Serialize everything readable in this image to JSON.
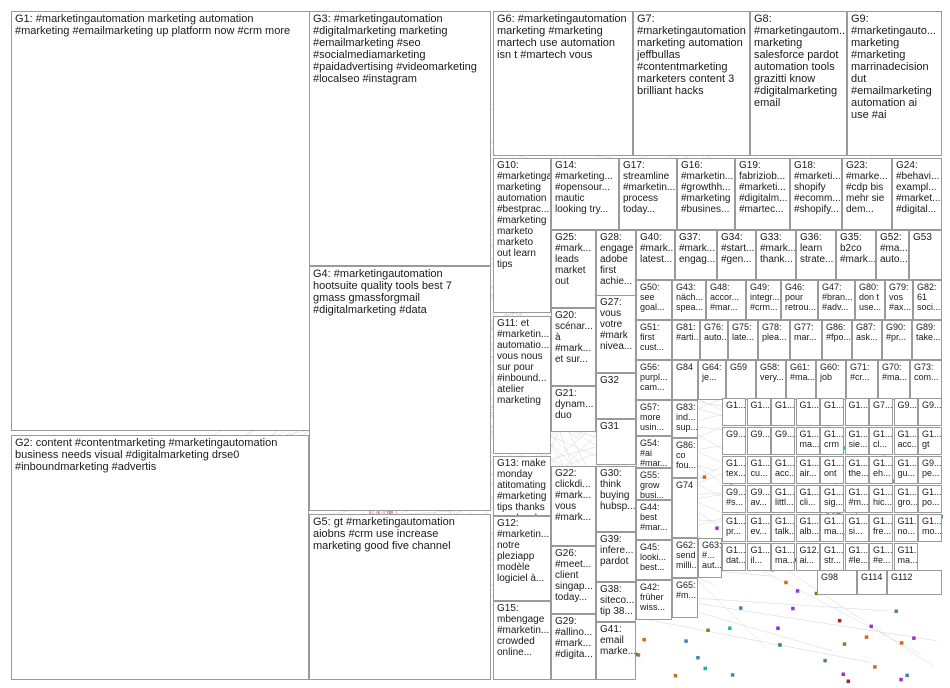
{
  "groups": [
    {
      "id": "G1",
      "label": "G1: #marketingautomation marketing automation\n#marketing #emailmarketing up platform now #crm more"
    },
    {
      "id": "G2",
      "label": "G2: content #contentmarketing #marketingautomation\nbusiness needs visual #digitalmarketing drse0\n#inboundmarketing #advertis"
    },
    {
      "id": "G3",
      "label": "G3: #marketingautomation\n#digitalmarketing marketing\n#emailmarketing #seo\n#socialmediamarketing\n#paidadvertising #videomarketing\n#localseo #instagram"
    },
    {
      "id": "G4",
      "label": "G4: #marketingautomation\nhootsuite quality tools best 7\ngmass gmassforgmail\n#digitalmarketing #data"
    },
    {
      "id": "G5",
      "label": "G5: gt #marketingautomation\naiobns #crm use increase\nmarketing good five channel"
    },
    {
      "id": "G6",
      "label": "G6: #marketingautomation\nmarketing #marketing\nmartech use automation\nisn t #martech vous"
    },
    {
      "id": "G7",
      "label": "G7:\n#marketingautomation\nmarketing automation\njeffbullas\n#contentmarketing\nmarketers content 3\nbrilliant hacks"
    },
    {
      "id": "G8",
      "label": "G8:\n#marketingautom...\nmarketing\nsalesforce pardot\nautomation tools\ngrazitti know\n#digitalmarketing\nemail"
    },
    {
      "id": "G9",
      "label": "G9:\n#marketingauto...\nmarketing\n#marketing\nmarrinadecision\ndut\n#emailmarketing\nautomation ai\nuse #ai"
    },
    {
      "id": "G10",
      "label": "G10:\n#marketingauto...\nmarketing\nautomation\n#bestprac...\n#marketing\nmarketo\nmarketo\nout learn\ntips"
    },
    {
      "id": "G11",
      "label": "G11: et\n#marketin...\nautomatio...\nvous nous\nsur pour\n#inbound...\natelier\nmarketing"
    },
    {
      "id": "G13",
      "label": "G13: make\nmonday\natitomating\n#marketing\ntips thanks\ncarolynel..."
    },
    {
      "id": "G12",
      "label": "G12:\n#marketin...\nnotre\npleziapp\nmodèle\nlogiciel à..."
    },
    {
      "id": "G15",
      "label": "G15:\nmbengage\n#marketin...\ncrowded\nonline..."
    },
    {
      "id": "G14",
      "label": "G14:\n#marketing...\n#opensour...\nmautic\nlooking try..."
    },
    {
      "id": "G17",
      "label": "G17:\nstreamline\n#marketin...\nprocess\ntoday..."
    },
    {
      "id": "G16",
      "label": "G16:\n#marketin...\n#growthh...\n#marketing\n#busines..."
    },
    {
      "id": "G19",
      "label": "G19:\nfabriziob...\n#marketi...\n#digitalm...\n#martec..."
    },
    {
      "id": "G18",
      "label": "G18:\n#marketi...\nshopify\n#ecomm...\n#shopify..."
    },
    {
      "id": "G23",
      "label": "G23:\n#marke...\n#cdp bis\nmehr sie\ndem..."
    },
    {
      "id": "G24",
      "label": "G24:\n#behavi...\nexampl...\n#market...\n#digital..."
    },
    {
      "id": "G25",
      "label": "G25:\n#mark...\nleads\nmarket\nout"
    },
    {
      "id": "G28",
      "label": "G28:\nengage\nadobe\nfirst\nachie..."
    },
    {
      "id": "G40",
      "label": "G40:\n#mark...\nlatest..."
    },
    {
      "id": "G37",
      "label": "G37:\n#mark...\nengag..."
    },
    {
      "id": "G34",
      "label": "G34:\n#start...\n#gen..."
    },
    {
      "id": "G33",
      "label": "G33:\n#mark...\nthank..."
    },
    {
      "id": "G36",
      "label": "G36:\nlearn\nstrate..."
    },
    {
      "id": "G35",
      "label": "G35:\nb2co\n#mark..."
    },
    {
      "id": "G52",
      "label": "G52:\n#ma...\nauto..."
    },
    {
      "id": "G53",
      "label": "G53"
    },
    {
      "id": "G20",
      "label": "G20:\nscénar...\nà\n#mark...\net sur..."
    },
    {
      "id": "G27",
      "label": "G27:\nvous\nvotre\n#mark\nnivea..."
    },
    {
      "id": "G50",
      "label": "G50:\nsee\ngoal..."
    },
    {
      "id": "G43",
      "label": "G43:\nnäch...\nspea..."
    },
    {
      "id": "G48",
      "label": "G48:\naccor...\n#mar..."
    },
    {
      "id": "G49",
      "label": "G49:\nintegr...\n#crm..."
    },
    {
      "id": "G46",
      "label": "G46:\npour\nretrou..."
    },
    {
      "id": "G47",
      "label": "G47:\n#bran...\n#adv..."
    },
    {
      "id": "G80",
      "label": "G80:\ndon t\nuse..."
    },
    {
      "id": "G79",
      "label": "G79:\nvos\n#ax..."
    },
    {
      "id": "G82",
      "label": "G82:\n61\nsoci..."
    },
    {
      "id": "G51",
      "label": "G51:\nfirst\ncust..."
    },
    {
      "id": "G81",
      "label": "G81:\n#arti..."
    },
    {
      "id": "G76",
      "label": "G76:\nauto..."
    },
    {
      "id": "G75",
      "label": "G75:\nlate..."
    },
    {
      "id": "G78",
      "label": "G78:\nplea..."
    },
    {
      "id": "G77",
      "label": "G77:\nmar..."
    },
    {
      "id": "G86",
      "label": "G86:\n#fpo..."
    },
    {
      "id": "G87",
      "label": "G87:\nask..."
    },
    {
      "id": "G90",
      "label": "G90:\n#pr..."
    },
    {
      "id": "G89",
      "label": "G89:\ntake..."
    },
    {
      "id": "G21",
      "label": "G21:\ndynam...\nduo"
    },
    {
      "id": "G32",
      "label": "G32"
    },
    {
      "id": "G56",
      "label": "G56:\npurpl...\ncam..."
    },
    {
      "id": "G84",
      "label": "G84"
    },
    {
      "id": "G64",
      "label": "G64:\nje..."
    },
    {
      "id": "G59",
      "label": "G59"
    },
    {
      "id": "G58",
      "label": "G58:\nvery..."
    },
    {
      "id": "G61",
      "label": "G61:\n#ma..."
    },
    {
      "id": "G60",
      "label": "G60:\njob"
    },
    {
      "id": "G71",
      "label": "G71:\n#cr..."
    },
    {
      "id": "G70",
      "label": "G70:\n#ma..."
    },
    {
      "id": "G73",
      "label": "G73:\ncom..."
    },
    {
      "id": "G31",
      "label": "G31"
    },
    {
      "id": "G57",
      "label": "G57:\nmore\nusin..."
    },
    {
      "id": "G83",
      "label": "G83:\nind...\nsup..."
    },
    {
      "id": "G22",
      "label": "G22:\nclickdi...\n#mark...\nvous\n#mark..."
    },
    {
      "id": "G30",
      "label": "G30:\nthink\nbuying\nhubsp..."
    },
    {
      "id": "G54",
      "label": "G54:\n#ai\n#mar..."
    },
    {
      "id": "G86b",
      "label": "G86:\nco\nfou..."
    },
    {
      "id": "G55",
      "label": "G55:\ngrow\nbusi..."
    },
    {
      "id": "G26",
      "label": "G26:\n#meet...\nclient\nsingap...\ntoday..."
    },
    {
      "id": "G39",
      "label": "G39:\ninfere...\npardot"
    },
    {
      "id": "G74",
      "label": "G74"
    },
    {
      "id": "G44",
      "label": "G44:\nbest\n#mar..."
    },
    {
      "id": "G38",
      "label": "G38:\nsiteco...\ntip 38..."
    },
    {
      "id": "G45",
      "label": "G45:\nlooki...\nbest..."
    },
    {
      "id": "G62",
      "label": "G62:\nsend\nmilli..."
    },
    {
      "id": "G63",
      "label": "G63:\n#...\naut..."
    },
    {
      "id": "G29",
      "label": "G29:\n#allino...\n#mark...\n#digita..."
    },
    {
      "id": "G41",
      "label": "G41:\nemail\nmarke..."
    },
    {
      "id": "G42",
      "label": "G42:\nfrüher\nwiss..."
    },
    {
      "id": "G65",
      "label": "G65:\n#m..."
    },
    {
      "id": "G114",
      "label": "G114"
    },
    {
      "id": "G112",
      "label": "G112"
    },
    {
      "id": "G98",
      "label": "G98"
    },
    {
      "id": "G97",
      "label": "G97"
    }
  ],
  "small_group_labels": [
    "G1...",
    "G1...",
    "G1...",
    "G1...",
    "G1...",
    "G1...",
    "G7...",
    "G9...",
    "G9...",
    "G9...",
    "G9...",
    "G9...",
    "G1... ma...",
    "G1... crm",
    "G1... sie...",
    "G1... cl...",
    "G1... acc...",
    "G1... gt",
    "G1... tex...",
    "G1... cu...",
    "G1... acc...",
    "G1... air...",
    "G1... ont",
    "G1... the...",
    "G1... eh...",
    "G1... gu...",
    "G9... pe...",
    "G9... #s...",
    "G9... av...",
    "G1... littl...",
    "G1... cli...",
    "G1... sig...",
    "G1... #m...",
    "G1... hic...",
    "G1... gro...",
    "G1... po...",
    "G1... pr...",
    "G1... ev...",
    "G1... talk...",
    "G1... alb...",
    "G1... ma...",
    "G1... si...",
    "G1... fre...",
    "G11... no...",
    "G1... mo...",
    "G1... dat...",
    "G1... il...",
    "G1... ma...",
    "G12... ai...",
    "G1... str...",
    "G1... #le...",
    "G1... #e...",
    "G11... ma..."
  ]
}
